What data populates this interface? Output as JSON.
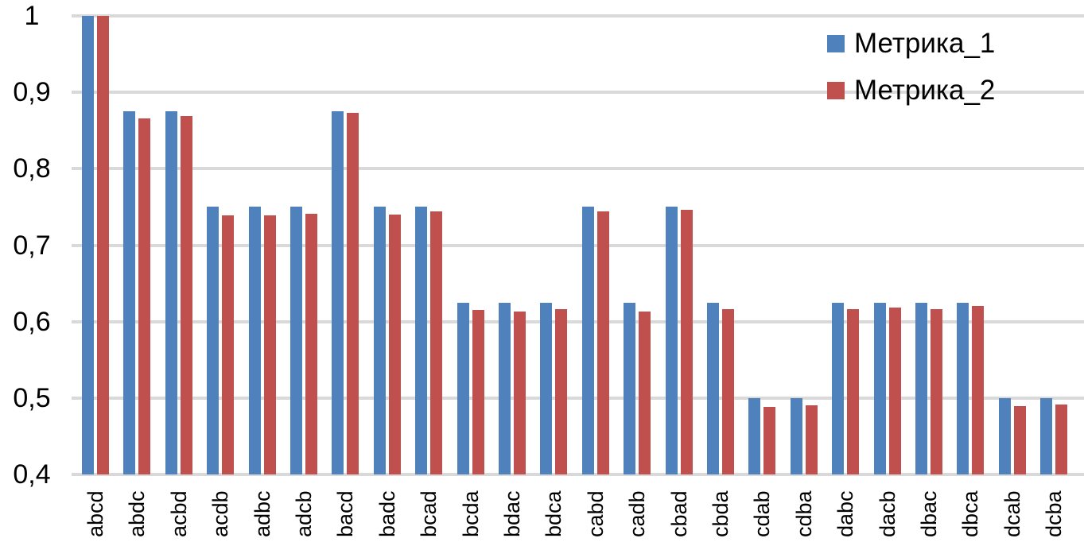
{
  "chart_data": {
    "type": "bar",
    "title": "",
    "xlabel": "",
    "ylabel": "",
    "categories": [
      "abcd",
      "abdc",
      "acbd",
      "acdb",
      "adbc",
      "adcb",
      "bacd",
      "badc",
      "bcad",
      "bcda",
      "bdac",
      "bdca",
      "cabd",
      "cadb",
      "cbad",
      "cbda",
      "cdab",
      "cdba",
      "dabc",
      "dacb",
      "dbac",
      "dbca",
      "dcab",
      "dcba"
    ],
    "series": [
      {
        "name": "Метрика_1",
        "color": "#4F81BD",
        "values": [
          1.0,
          0.875,
          0.875,
          0.75,
          0.75,
          0.75,
          0.875,
          0.75,
          0.75,
          0.625,
          0.625,
          0.625,
          0.75,
          0.625,
          0.75,
          0.625,
          0.5,
          0.5,
          0.625,
          0.625,
          0.625,
          0.625,
          0.5,
          0.5
        ]
      },
      {
        "name": "Метрика_2",
        "color": "#C0504D",
        "values": [
          1.0,
          0.866,
          0.869,
          0.739,
          0.739,
          0.741,
          0.873,
          0.74,
          0.744,
          0.615,
          0.613,
          0.616,
          0.744,
          0.613,
          0.746,
          0.616,
          0.488,
          0.49,
          0.616,
          0.618,
          0.616,
          0.62,
          0.489,
          0.491
        ]
      }
    ],
    "ylim": [
      0.4,
      1.0
    ],
    "ytick_step": 0.1,
    "ytick_labels_top_down": [
      "1",
      "0,9",
      "0,8",
      "0,7",
      "0,6",
      "0,5",
      "0,4"
    ],
    "grid": "horizontal",
    "gridline_color": "#D9D9D9",
    "background_color": "#FFFFFF",
    "text_color": "#000000",
    "legend_position": "top-right",
    "x_label_rotation_degrees": -90
  }
}
